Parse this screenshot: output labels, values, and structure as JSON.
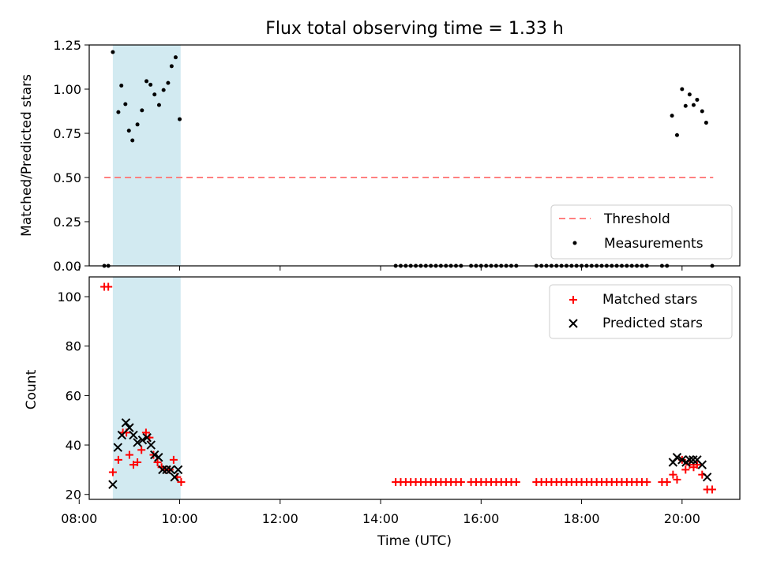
{
  "title": "Flux total observing time = 1.33 h",
  "colors": {
    "threshold": "#ff8080",
    "measurement": "#000000",
    "matched": "#ff0000",
    "predicted": "#000000",
    "shade": "#add8e6"
  },
  "chart_data": [
    {
      "type": "scatter",
      "ylabel": "Matched/Predicted stars",
      "xlim": [
        8.2,
        21.15
      ],
      "ylim": [
        0,
        1.25
      ],
      "y_ticks": [
        0.0,
        0.25,
        0.5,
        0.75,
        1.0,
        1.25
      ],
      "y_tick_labels": [
        "0.00",
        "0.25",
        "0.50",
        "0.75",
        "1.00",
        "1.25"
      ],
      "shaded_x_range": [
        8.67,
        10.02
      ],
      "threshold": {
        "name": "Threshold",
        "y": 0.5,
        "x_range": [
          8.5,
          20.62
        ]
      },
      "legend": {
        "placement": "bottom-right",
        "entries": [
          "Threshold",
          "Measurements"
        ]
      },
      "series": [
        {
          "name": "Measurements",
          "points": [
            [
              8.5,
              0
            ],
            [
              8.58,
              0
            ],
            [
              8.67,
              1.21
            ],
            [
              8.78,
              0.87
            ],
            [
              8.84,
              1.02
            ],
            [
              8.92,
              0.915
            ],
            [
              8.99,
              0.765
            ],
            [
              9.06,
              0.71
            ],
            [
              9.16,
              0.8
            ],
            [
              9.25,
              0.88
            ],
            [
              9.34,
              1.045
            ],
            [
              9.42,
              1.025
            ],
            [
              9.5,
              0.97
            ],
            [
              9.59,
              0.91
            ],
            [
              9.68,
              0.995
            ],
            [
              9.77,
              1.035
            ],
            [
              9.84,
              1.13
            ],
            [
              9.92,
              1.18
            ],
            [
              10.0,
              0.83
            ],
            [
              14.3,
              0
            ],
            [
              14.4,
              0
            ],
            [
              14.5,
              0
            ],
            [
              14.6,
              0
            ],
            [
              14.7,
              0
            ],
            [
              14.8,
              0
            ],
            [
              14.9,
              0
            ],
            [
              15.0,
              0
            ],
            [
              15.1,
              0
            ],
            [
              15.2,
              0
            ],
            [
              15.3,
              0
            ],
            [
              15.4,
              0
            ],
            [
              15.5,
              0
            ],
            [
              15.6,
              0
            ],
            [
              15.8,
              0
            ],
            [
              15.9,
              0
            ],
            [
              16.0,
              0
            ],
            [
              16.1,
              0
            ],
            [
              16.2,
              0
            ],
            [
              16.3,
              0
            ],
            [
              16.4,
              0
            ],
            [
              16.5,
              0
            ],
            [
              16.6,
              0
            ],
            [
              16.7,
              0
            ],
            [
              17.1,
              0
            ],
            [
              17.2,
              0
            ],
            [
              17.3,
              0
            ],
            [
              17.4,
              0
            ],
            [
              17.5,
              0
            ],
            [
              17.6,
              0
            ],
            [
              17.7,
              0
            ],
            [
              17.8,
              0
            ],
            [
              17.9,
              0
            ],
            [
              18.0,
              0
            ],
            [
              18.1,
              0
            ],
            [
              18.2,
              0
            ],
            [
              18.3,
              0
            ],
            [
              18.4,
              0
            ],
            [
              18.5,
              0
            ],
            [
              18.6,
              0
            ],
            [
              18.7,
              0
            ],
            [
              18.8,
              0
            ],
            [
              18.9,
              0
            ],
            [
              19.0,
              0
            ],
            [
              19.1,
              0
            ],
            [
              19.2,
              0
            ],
            [
              19.3,
              0
            ],
            [
              19.6,
              0
            ],
            [
              19.7,
              0
            ],
            [
              19.8,
              0.85
            ],
            [
              19.9,
              0.74
            ],
            [
              20.0,
              1.0
            ],
            [
              20.07,
              0.905
            ],
            [
              20.15,
              0.97
            ],
            [
              20.23,
              0.91
            ],
            [
              20.3,
              0.94
            ],
            [
              20.4,
              0.875
            ],
            [
              20.48,
              0.81
            ],
            [
              20.6,
              0
            ]
          ]
        }
      ]
    },
    {
      "type": "scatter",
      "ylabel": "Count",
      "xlabel": "Time (UTC)",
      "xlim": [
        8.2,
        21.15
      ],
      "ylim": [
        18,
        108
      ],
      "y_ticks": [
        20,
        40,
        60,
        80,
        100
      ],
      "y_tick_labels": [
        "20",
        "40",
        "60",
        "80",
        "100"
      ],
      "x_ticks": [
        8,
        10,
        12,
        14,
        16,
        18,
        20
      ],
      "x_tick_labels": [
        "08:00",
        "10:00",
        "12:00",
        "14:00",
        "16:00",
        "18:00",
        "20:00"
      ],
      "shaded_x_range": [
        8.67,
        10.02
      ],
      "legend": {
        "placement": "top-right",
        "entries": [
          "Matched stars",
          "Predicted stars"
        ]
      },
      "series": [
        {
          "name": "Matched stars",
          "marker": "plus",
          "points": [
            [
              8.5,
              104
            ],
            [
              8.58,
              104
            ],
            [
              8.67,
              29
            ],
            [
              8.78,
              34
            ],
            [
              8.87,
              45
            ],
            [
              8.94,
              45
            ],
            [
              9.0,
              36
            ],
            [
              9.08,
              32
            ],
            [
              9.16,
              33
            ],
            [
              9.24,
              38
            ],
            [
              9.33,
              45
            ],
            [
              9.4,
              43
            ],
            [
              9.48,
              36
            ],
            [
              9.56,
              33
            ],
            [
              9.64,
              31
            ],
            [
              9.72,
              30
            ],
            [
              9.8,
              30
            ],
            [
              9.88,
              34
            ],
            [
              9.95,
              27
            ],
            [
              10.03,
              25
            ],
            [
              14.3,
              25
            ],
            [
              14.4,
              25
            ],
            [
              14.5,
              25
            ],
            [
              14.6,
              25
            ],
            [
              14.7,
              25
            ],
            [
              14.8,
              25
            ],
            [
              14.9,
              25
            ],
            [
              15.0,
              25
            ],
            [
              15.1,
              25
            ],
            [
              15.2,
              25
            ],
            [
              15.3,
              25
            ],
            [
              15.4,
              25
            ],
            [
              15.5,
              25
            ],
            [
              15.6,
              25
            ],
            [
              15.8,
              25
            ],
            [
              15.9,
              25
            ],
            [
              16.0,
              25
            ],
            [
              16.1,
              25
            ],
            [
              16.2,
              25
            ],
            [
              16.3,
              25
            ],
            [
              16.4,
              25
            ],
            [
              16.5,
              25
            ],
            [
              16.6,
              25
            ],
            [
              16.7,
              25
            ],
            [
              17.1,
              25
            ],
            [
              17.2,
              25
            ],
            [
              17.3,
              25
            ],
            [
              17.4,
              25
            ],
            [
              17.5,
              25
            ],
            [
              17.6,
              25
            ],
            [
              17.7,
              25
            ],
            [
              17.8,
              25
            ],
            [
              17.9,
              25
            ],
            [
              18.0,
              25
            ],
            [
              18.1,
              25
            ],
            [
              18.2,
              25
            ],
            [
              18.3,
              25
            ],
            [
              18.4,
              25
            ],
            [
              18.5,
              25
            ],
            [
              18.6,
              25
            ],
            [
              18.7,
              25
            ],
            [
              18.8,
              25
            ],
            [
              18.9,
              25
            ],
            [
              19.0,
              25
            ],
            [
              19.1,
              25
            ],
            [
              19.2,
              25
            ],
            [
              19.3,
              25
            ],
            [
              19.6,
              25
            ],
            [
              19.7,
              25
            ],
            [
              19.82,
              28
            ],
            [
              19.9,
              26
            ],
            [
              20.0,
              34
            ],
            [
              20.07,
              30
            ],
            [
              20.15,
              32
            ],
            [
              20.23,
              31
            ],
            [
              20.3,
              32
            ],
            [
              20.4,
              28
            ],
            [
              20.5,
              22
            ],
            [
              20.6,
              22
            ]
          ]
        },
        {
          "name": "Predicted stars",
          "marker": "x",
          "points": [
            [
              8.67,
              24
            ],
            [
              8.77,
              39
            ],
            [
              8.85,
              44
            ],
            [
              8.93,
              49
            ],
            [
              9.0,
              47
            ],
            [
              9.08,
              44
            ],
            [
              9.16,
              41
            ],
            [
              9.26,
              42
            ],
            [
              9.35,
              43
            ],
            [
              9.43,
              40
            ],
            [
              9.5,
              36
            ],
            [
              9.58,
              35
            ],
            [
              9.66,
              30
            ],
            [
              9.74,
              30
            ],
            [
              9.82,
              30
            ],
            [
              9.9,
              27
            ],
            [
              9.97,
              30
            ],
            [
              19.82,
              33
            ],
            [
              19.9,
              35
            ],
            [
              20.0,
              34
            ],
            [
              20.08,
              33
            ],
            [
              20.15,
              34
            ],
            [
              20.22,
              34
            ],
            [
              20.3,
              34
            ],
            [
              20.4,
              32
            ],
            [
              20.5,
              27
            ]
          ]
        }
      ]
    }
  ]
}
